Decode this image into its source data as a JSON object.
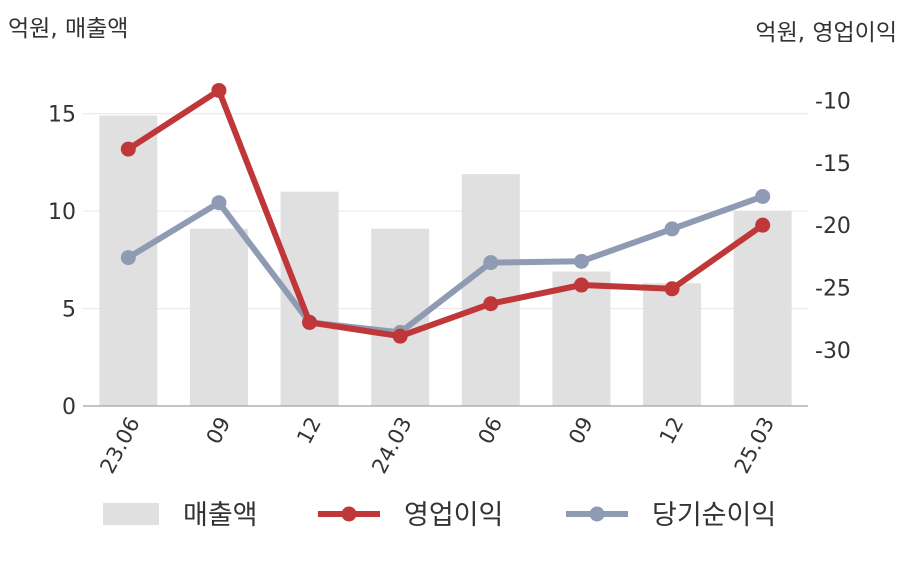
{
  "chart_data": {
    "type": "bar+line",
    "left_axis_unit": "억원, 매출액",
    "right_axis_unit": "억원, 영업이익",
    "categories": [
      "23.06",
      "09",
      "12",
      "24.03",
      "06",
      "09",
      "12",
      "25.03"
    ],
    "left_axis": {
      "range": [
        0,
        17.5
      ],
      "ticks": [
        0,
        5,
        10,
        15
      ]
    },
    "right_axis": {
      "range": [
        -34.5,
        -7.4
      ],
      "ticks": [
        -10,
        -15,
        -20,
        -25,
        -30
      ]
    },
    "bar_series": {
      "name": "매출액",
      "color": "#e0e0e0",
      "values": [
        14.9,
        9.1,
        11.0,
        9.1,
        11.9,
        6.9,
        6.3,
        10.0
      ]
    },
    "line_series": [
      {
        "name": "영업이익",
        "color": "#c0373a",
        "values": [
          -13.9,
          -9.2,
          -27.8,
          -28.9,
          -26.3,
          -24.8,
          -25.1,
          -20.0
        ]
      },
      {
        "name": "당기순이익",
        "color": "#8f9bb3",
        "values": [
          -22.6,
          -18.2,
          -27.8,
          -28.6,
          -23.0,
          -22.9,
          -20.3,
          -17.7
        ]
      }
    ],
    "grid": true,
    "legend_position": "bottom"
  }
}
